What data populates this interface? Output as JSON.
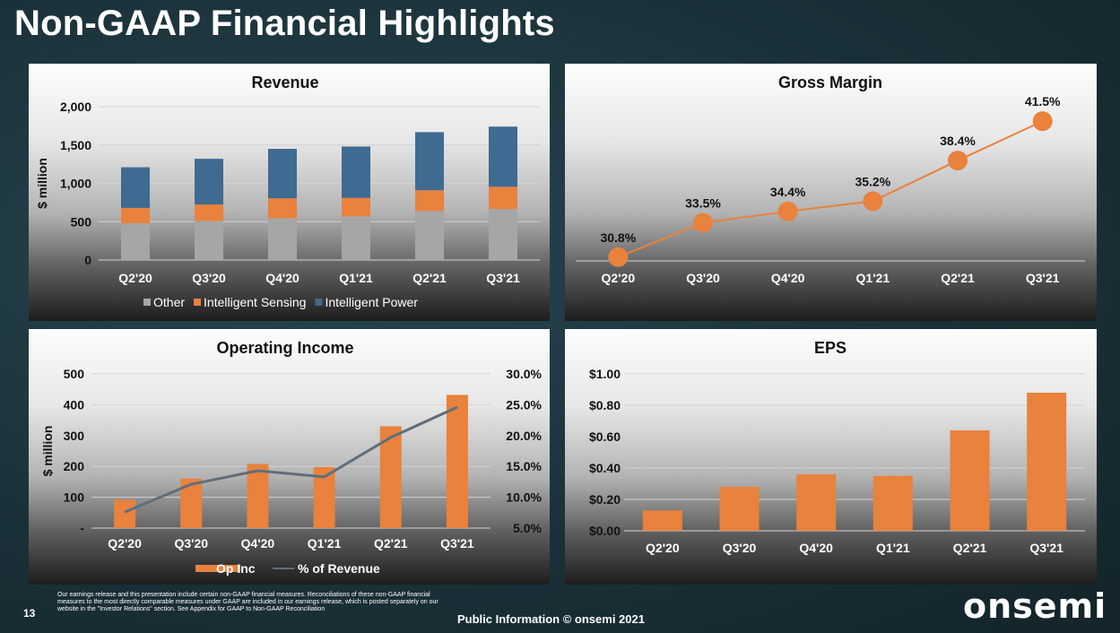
{
  "page": {
    "title": "Non-GAAP Financial Highlights",
    "page_number": "13",
    "disclaimer": "Our earnings release and this presentation include certain non-GAAP financial measures. Reconciliations of these non-GAAP financial measures to the most directly comparable measures under GAAP are included in our earnings release, which is posted separately on our website in the \"Investor Relations\" section. See Appendix for GAAP to Non-GAAP Reconciliation",
    "footer": "Public Information  © onsemi 2021",
    "logo": "onsemi"
  },
  "colors": {
    "other": "#a6a6a6",
    "intelligent_sensing": "#e8823d",
    "intelligent_power": "#3f6a91",
    "op_inc": "#e8823d",
    "pct_revenue": "#5f6e7c",
    "gross_margin": "#e8823d",
    "eps": "#e8823d"
  },
  "chart_data": [
    {
      "type": "bar",
      "stacked": true,
      "title": "Revenue",
      "ylabel": "$ million",
      "categories": [
        "Q2'20",
        "Q3'20",
        "Q4'20",
        "Q1'21",
        "Q2'21",
        "Q3'21"
      ],
      "series": [
        {
          "name": "Other",
          "values": [
            480,
            510,
            545,
            570,
            640,
            665
          ]
        },
        {
          "name": "Intelligent Sensing",
          "values": [
            200,
            215,
            260,
            240,
            270,
            290
          ]
        },
        {
          "name": "Intelligent Power",
          "values": [
            530,
            595,
            645,
            670,
            758,
            785
          ]
        }
      ],
      "ylim": [
        0,
        2000
      ],
      "yticks": [
        "0",
        "500",
        "1,000",
        "1,500",
        "2,000"
      ],
      "legend": "bottom",
      "grid": true
    },
    {
      "type": "line",
      "title": "Gross Margin",
      "categories": [
        "Q2'20",
        "Q3'20",
        "Q4'20",
        "Q1'21",
        "Q2'21",
        "Q3'21"
      ],
      "values": [
        30.8,
        33.5,
        34.4,
        35.2,
        38.4,
        41.5
      ],
      "data_labels": [
        "30.8%",
        "33.5%",
        "34.4%",
        "35.2%",
        "38.4%",
        "41.5%"
      ],
      "ylim": [
        30.5,
        42.5
      ],
      "grid": false
    },
    {
      "type": "bar",
      "title": "Operating Income",
      "ylabel": "$ million",
      "categories": [
        "Q2'20",
        "Q3'20",
        "Q4'20",
        "Q1'21",
        "Q2'21",
        "Q3'21"
      ],
      "series": [
        {
          "name": "Op Inc",
          "type": "bar",
          "axis": "left",
          "values": [
            92,
            160,
            208,
            198,
            330,
            432
          ]
        },
        {
          "name": "% of Revenue",
          "type": "line",
          "axis": "right",
          "values": [
            7.6,
            12.1,
            14.3,
            13.3,
            19.7,
            24.6
          ]
        }
      ],
      "ylim": [
        0,
        500
      ],
      "yticks": [
        "-",
        "100",
        "200",
        "300",
        "400",
        "500"
      ],
      "y2lim": [
        5,
        30
      ],
      "y2ticks": [
        "5.0%",
        "10.0%",
        "15.0%",
        "20.0%",
        "25.0%",
        "30.0%"
      ],
      "legend": "bottom",
      "grid": true
    },
    {
      "type": "bar",
      "title": "EPS",
      "categories": [
        "Q2'20",
        "Q3'20",
        "Q4'20",
        "Q1'21",
        "Q2'21",
        "Q3'21"
      ],
      "values": [
        0.13,
        0.28,
        0.36,
        0.35,
        0.64,
        0.88
      ],
      "ylim": [
        0,
        1
      ],
      "yticks": [
        "$0.00",
        "$0.20",
        "$0.40",
        "$0.60",
        "$0.80",
        "$1.00"
      ],
      "grid": true
    }
  ]
}
